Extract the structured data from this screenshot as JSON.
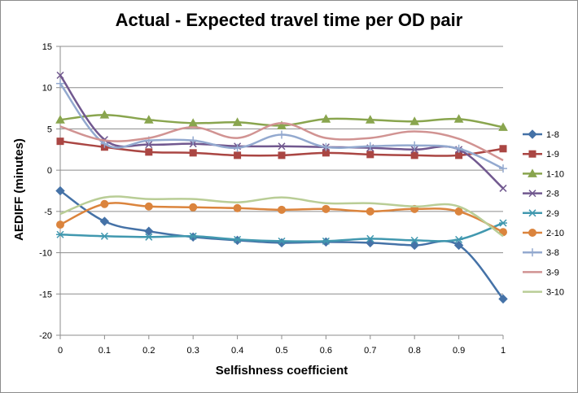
{
  "chart_data": {
    "type": "line",
    "title": "Actual - Expected travel time per OD pair",
    "xlabel": "Selfishness coefficient",
    "ylabel": "AEDIFF (minutes)",
    "x": [
      0,
      0.1,
      0.2,
      0.3,
      0.4,
      0.5,
      0.6,
      0.7,
      0.8,
      0.9,
      1
    ],
    "x_tick_labels": [
      "0",
      "0.1",
      "0.2",
      "0.3",
      "0.4",
      "0.5",
      "0.6",
      "0.7",
      "0.8",
      "0.9",
      "1"
    ],
    "y_tick_labels": [
      "15",
      "10",
      "5",
      "0",
      "-5",
      "-10",
      "-15",
      "-20"
    ],
    "xlim": [
      0,
      1
    ],
    "ylim": [
      -20,
      15
    ],
    "grid": "horizontal",
    "legend_position": "right",
    "series": [
      {
        "name": "1-8",
        "color": "#4572a7",
        "marker": "diamond",
        "values": [
          -2.5,
          -6.2,
          -7.4,
          -8.1,
          -8.5,
          -8.8,
          -8.7,
          -8.8,
          -9.1,
          -9.1,
          -15.6
        ]
      },
      {
        "name": "1-9",
        "color": "#aa4643",
        "marker": "square",
        "values": [
          3.5,
          2.8,
          2.2,
          2.1,
          1.8,
          1.8,
          2.1,
          1.9,
          1.8,
          1.8,
          2.6
        ]
      },
      {
        "name": "1-10",
        "color": "#89a54e",
        "marker": "triangle",
        "values": [
          6.1,
          6.7,
          6.1,
          5.7,
          5.8,
          5.4,
          6.2,
          6.1,
          5.9,
          6.2,
          5.2
        ]
      },
      {
        "name": "2-8",
        "color": "#71588f",
        "marker": "x",
        "values": [
          11.5,
          3.7,
          3.1,
          3.2,
          2.9,
          2.9,
          2.8,
          2.7,
          2.5,
          2.5,
          -2.2
        ]
      },
      {
        "name": "2-9",
        "color": "#4198af",
        "marker": "star",
        "values": [
          -7.8,
          -8.0,
          -8.1,
          -8.0,
          -8.4,
          -8.6,
          -8.6,
          -8.3,
          -8.5,
          -8.4,
          -6.4
        ]
      },
      {
        "name": "2-10",
        "color": "#db843d",
        "marker": "circle",
        "values": [
          -6.6,
          -4.1,
          -4.4,
          -4.5,
          -4.6,
          -4.8,
          -4.7,
          -5.0,
          -4.7,
          -5.0,
          -7.5
        ]
      },
      {
        "name": "3-8",
        "color": "#93a9cf",
        "marker": "plus",
        "values": [
          10.5,
          3.2,
          3.6,
          3.6,
          2.7,
          4.3,
          2.8,
          2.9,
          3.0,
          2.6,
          0.2
        ]
      },
      {
        "name": "3-9",
        "color": "#d19392",
        "marker": "none",
        "values": [
          5.3,
          3.6,
          3.9,
          5.2,
          3.9,
          5.7,
          3.9,
          3.9,
          4.7,
          3.8,
          1.2
        ]
      },
      {
        "name": "3-10",
        "color": "#b9cd96",
        "marker": "none",
        "values": [
          -5.3,
          -3.3,
          -3.5,
          -3.5,
          -3.9,
          -3.3,
          -4.0,
          -4.0,
          -4.4,
          -4.4,
          -8.0
        ]
      }
    ]
  }
}
